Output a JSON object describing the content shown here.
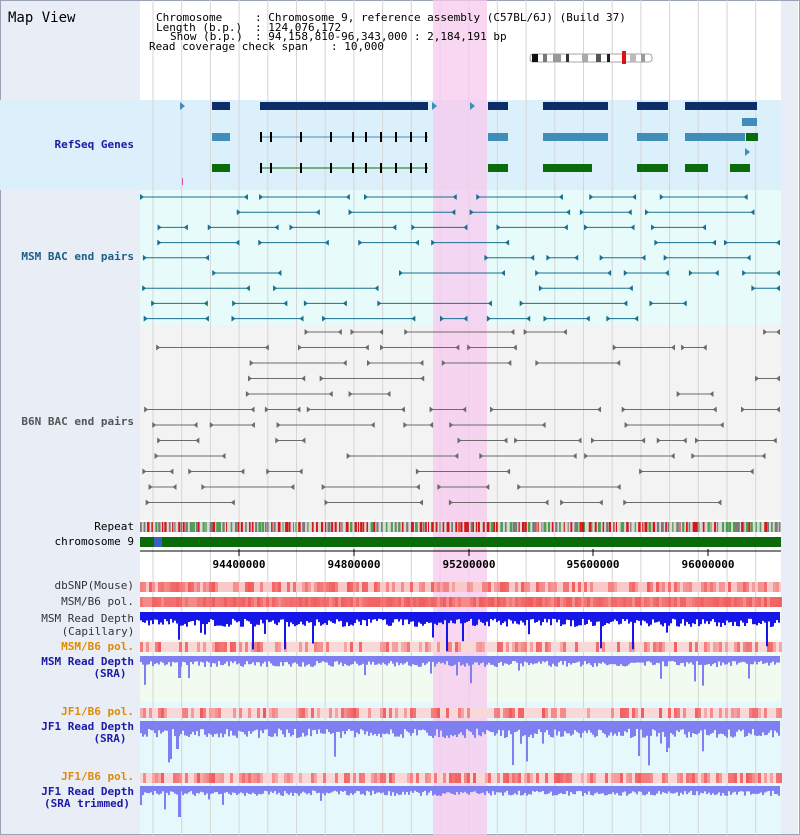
{
  "page": {
    "title": "Map View"
  },
  "header": {
    "chromosome_key": "Chromosome",
    "chromosome_value": ": Chromosome 9, reference assembly (C57BL/6J) (Build 37)",
    "length_key": "Length (b.p.)",
    "length_value": ": 124,076,172",
    "show_key": "Show (b.p.)",
    "show_value": ": 94,158,810-96,343,000 : 2,184,191 bp",
    "coverage_key": "Read coverage check span",
    "coverage_value": ": 10,000"
  },
  "tracks": {
    "refseq": "RefSeq Genes",
    "msm_bac": "MSM BAC end pairs",
    "b6n_bac": "B6N BAC end pairs",
    "repeat": "Repeat",
    "chromosome": "chromosome 9",
    "dbsnp": "dbSNP(Mouse)",
    "msm_b6_pol": "MSM/B6 pol.",
    "msm_depth_cap_1": "MSM Read Depth",
    "msm_depth_cap_2": "(Capillary)",
    "msm_b6_pol_2": "MSM/B6 pol.",
    "msm_depth_sra_1": "MSM Read Depth",
    "msm_depth_sra_2": "(SRA)",
    "jf1_b6_pol": "JF1/B6 pol.",
    "jf1_depth_sra_1": "JF1 Read Depth",
    "jf1_depth_sra_2": "(SRA)",
    "jf1_b6_pol_2": "JF1/B6 pol.",
    "jf1_depth_trim_1": "JF1 Read Depth",
    "jf1_depth_trim_2": "(SRA trimmed)"
  },
  "axis": {
    "ticks": [
      "94400000",
      "94800000",
      "95200000",
      "95600000",
      "96000000"
    ]
  },
  "colors": {
    "refseq_label": "#1a1aa6",
    "msm_label": "#1b5e86",
    "b6n_label": "#555555",
    "pol_label": "#e08a00",
    "depth_label": "#1a1aa6",
    "highlight": "#f7c9ee",
    "gene_dark": "#0d2d6b",
    "gene_mid": "#3f8db8",
    "gene_green": "#0b6b0b",
    "chromosome_bar": "#0b6b0b",
    "capillary_depth": "#1616e8",
    "sra_depth": "#7f7ff2",
    "snp_red": "#f05a5a"
  }
}
